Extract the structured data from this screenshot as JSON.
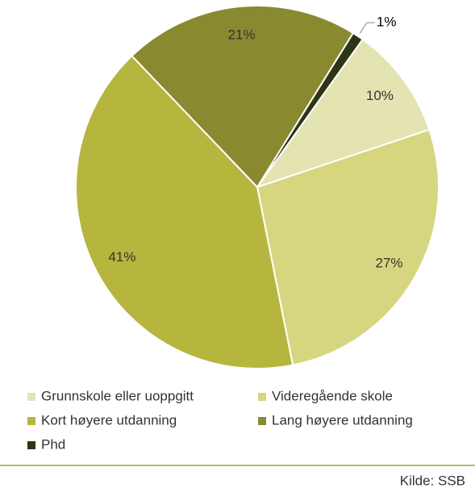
{
  "chart_data": {
    "type": "pie",
    "categories": [
      "Grunnskole eller uoppgitt",
      "Videregående skole",
      "Kort høyere utdanning",
      "Lang høyere utdanning",
      "Phd"
    ],
    "values": [
      10,
      27,
      41,
      21,
      1
    ],
    "value_labels": [
      "10%",
      "27%",
      "41%",
      "21%",
      "1%"
    ],
    "colors": [
      "#e3e4b2",
      "#d7d680",
      "#b6b53e",
      "#898a30",
      "#2e3416"
    ],
    "source": "Kilde: SSB"
  }
}
